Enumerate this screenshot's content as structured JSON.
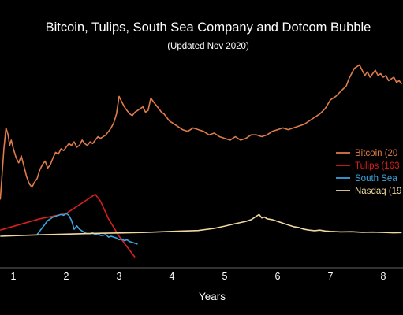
{
  "chart_data": {
    "type": "line",
    "title": "Bitcoin, Tulips, South Sea Company and Dotcom Bubble",
    "subtitle": "(Updated Nov 2020)",
    "xlabel": "Years",
    "ylabel": "",
    "xlim": [
      0.75,
      8.35
    ],
    "ylim": [
      0,
      100
    ],
    "x_ticks": [
      1,
      2,
      3,
      4,
      5,
      6,
      7,
      8
    ],
    "grid": false,
    "legend_position": "right",
    "series": [
      {
        "name": "Bitcoin (20",
        "color": "#e07b4a",
        "x": [
          0.75,
          0.78,
          0.82,
          0.86,
          0.9,
          0.93,
          0.96,
          1.0,
          1.05,
          1.1,
          1.15,
          1.2,
          1.25,
          1.3,
          1.35,
          1.4,
          1.45,
          1.5,
          1.55,
          1.6,
          1.65,
          1.7,
          1.75,
          1.8,
          1.85,
          1.9,
          1.95,
          2.0,
          2.05,
          2.1,
          2.15,
          2.2,
          2.25,
          2.3,
          2.35,
          2.4,
          2.45,
          2.5,
          2.55,
          2.6,
          2.65,
          2.7,
          2.75,
          2.8,
          2.85,
          2.9,
          2.95,
          3.0,
          3.05,
          3.1,
          3.15,
          3.2,
          3.25,
          3.3,
          3.35,
          3.4,
          3.45,
          3.5,
          3.55,
          3.6,
          3.65,
          3.7,
          3.75,
          3.8,
          3.85,
          3.9,
          3.95,
          4.0,
          4.1,
          4.2,
          4.3,
          4.4,
          4.5,
          4.6,
          4.7,
          4.8,
          4.9,
          5.0,
          5.1,
          5.2,
          5.3,
          5.4,
          5.5,
          5.6,
          5.7,
          5.8,
          5.9,
          6.0,
          6.1,
          6.2,
          6.3,
          6.4,
          6.5,
          6.6,
          6.7,
          6.8,
          6.9,
          7.0,
          7.1,
          7.2,
          7.3,
          7.35,
          7.4,
          7.45,
          7.5,
          7.55,
          7.6,
          7.65,
          7.7,
          7.75,
          7.8,
          7.85,
          7.9,
          7.95,
          8.0,
          8.05,
          8.1,
          8.15,
          8.2,
          8.25,
          8.3,
          8.35
        ],
        "values": [
          21,
          33,
          50,
          62,
          58,
          52,
          55,
          50,
          45,
          42,
          46,
          40,
          34,
          30,
          28,
          31,
          33,
          38,
          41,
          43,
          39,
          41,
          45,
          48,
          47,
          50,
          49,
          51,
          53,
          52,
          54,
          51,
          52,
          55,
          53,
          52,
          54,
          53,
          55,
          57,
          56,
          57,
          58,
          60,
          62,
          65,
          70,
          80,
          77,
          74,
          72,
          70,
          69,
          71,
          72,
          73,
          74,
          71,
          72,
          79,
          77,
          75,
          73,
          71,
          70,
          68,
          66,
          65,
          63,
          61,
          60,
          62,
          61,
          60,
          58,
          59,
          57,
          56,
          55,
          57,
          55,
          56,
          58,
          58,
          57,
          58,
          60,
          61,
          62,
          61,
          62,
          63,
          64,
          66,
          68,
          70,
          73,
          78,
          80,
          83,
          86,
          90,
          93,
          96,
          97,
          98,
          95,
          92,
          94,
          91,
          93,
          95,
          92,
          93,
          91,
          92,
          89,
          90,
          91,
          88,
          89,
          87
        ]
      },
      {
        "name": "Tulips (163",
        "color": "#d81e1e",
        "x": [
          0.75,
          1.5,
          2.0,
          2.55,
          2.65,
          2.8,
          3.0,
          3.3
        ],
        "values": [
          3.5,
          10,
          13,
          24,
          20,
          10,
          0,
          -12
        ]
      },
      {
        "name": "South Sea",
        "color": "#3aa6e0",
        "x": [
          1.45,
          1.5,
          1.55,
          1.6,
          1.65,
          1.7,
          1.75,
          1.8,
          1.85,
          1.9,
          1.95,
          2.0,
          2.05,
          2.1,
          2.15,
          2.2,
          2.25,
          2.3,
          2.35,
          2.4,
          2.45,
          2.5,
          2.55,
          2.6,
          2.65,
          2.7,
          2.75,
          2.8,
          2.85,
          2.9,
          2.95,
          3.0,
          3.05,
          3.1,
          3.15,
          3.2,
          3.25,
          3.3,
          3.35
        ],
        "values": [
          1,
          3,
          5,
          7,
          9,
          10,
          11,
          11.5,
          12,
          12.5,
          12,
          13,
          12,
          9,
          4,
          6,
          4,
          3,
          2,
          1.5,
          1.5,
          2,
          1,
          1.5,
          0.5,
          0.5,
          1,
          -0.5,
          0,
          -0.5,
          -1,
          -2,
          -1.5,
          -2.5,
          -2,
          -3,
          -3.5,
          -4,
          -4.5
        ]
      },
      {
        "name": "Nasdaq (19",
        "color": "#f0d9a0",
        "x": [
          0.75,
          1.0,
          1.5,
          2.0,
          2.5,
          3.0,
          3.5,
          4.0,
          4.5,
          4.8,
          5.0,
          5.2,
          5.4,
          5.5,
          5.6,
          5.65,
          5.7,
          5.75,
          5.8,
          5.9,
          6.0,
          6.1,
          6.2,
          6.3,
          6.4,
          6.5,
          6.6,
          6.7,
          6.8,
          6.9,
          7.0,
          7.2,
          7.4,
          7.6,
          7.8,
          8.0,
          8.2,
          8.35
        ],
        "values": [
          0,
          0.3,
          0.8,
          1.2,
          1.6,
          1.9,
          2.2,
          2.8,
          3.3,
          4.5,
          5.8,
          7.2,
          8.5,
          9.5,
          11.5,
          12.5,
          10.5,
          11,
          10,
          9.5,
          8.5,
          7.5,
          6.5,
          5.5,
          5,
          4,
          3.5,
          3.2,
          3.5,
          3,
          2.8,
          2.5,
          2.6,
          2.3,
          2.4,
          2.2,
          2.0,
          2.1
        ]
      }
    ]
  }
}
